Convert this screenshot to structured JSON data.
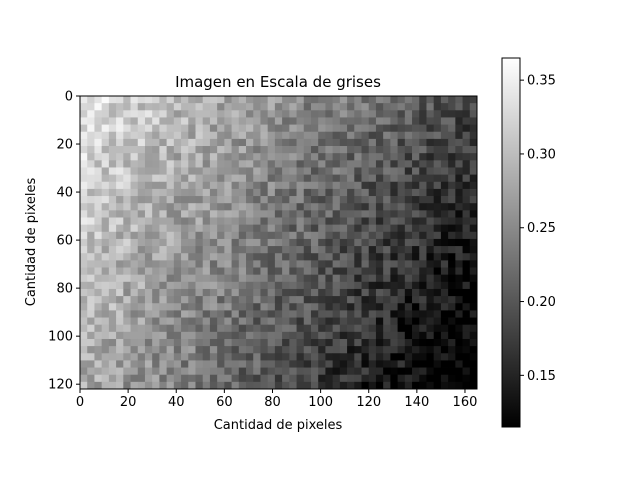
{
  "chart_data": {
    "type": "heatmap",
    "title": "Imagen en Escala de grises",
    "xlabel": "Cantidad de pixeles",
    "ylabel": "Cantidad de pixeles",
    "xlim": [
      0,
      165
    ],
    "ylim": [
      122,
      0
    ],
    "x_ticks": [
      "0",
      "20",
      "40",
      "60",
      "80",
      "100",
      "120",
      "140",
      "160"
    ],
    "y_ticks": [
      "0",
      "20",
      "40",
      "60",
      "80",
      "100",
      "120"
    ],
    "colormap": "gray",
    "value_range": [
      0.115,
      0.365
    ],
    "colorbar_ticks": [
      "0.15",
      "0.20",
      "0.25",
      "0.30",
      "0.35"
    ],
    "grid": false
  }
}
